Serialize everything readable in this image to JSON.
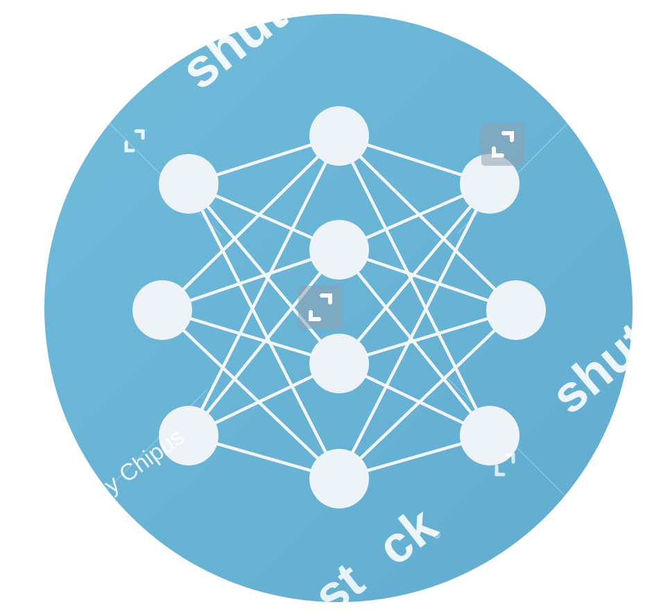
{
  "graphic": {
    "name": "neural-network-icon",
    "colors": {
      "circle": "#6bb6d6",
      "circle_shade": "#5ea9cc",
      "node": "#eef3f8",
      "edge": "#f2f6f9"
    },
    "layers": [
      {
        "name": "left",
        "nodes": 3
      },
      {
        "name": "middle",
        "nodes": 4
      },
      {
        "name": "right",
        "nodes": 3
      }
    ],
    "connectivity": "fully-connected"
  },
  "watermark": {
    "brand_fragments": [
      "shutte",
      "shutte",
      "st",
      "ck"
    ],
    "registered_mark": "®",
    "contributor": "Andy Chipus",
    "logo_icon": "shutterstock-logo-icon",
    "color": "#ffffff"
  }
}
